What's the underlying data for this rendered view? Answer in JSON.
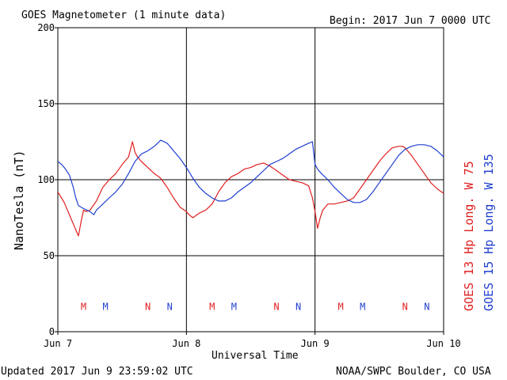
{
  "header": {
    "title": "GOES Magnetometer (1 minute data)",
    "begin": "Begin:  2017 Jun 7 0000 UTC"
  },
  "footer": {
    "updated": "Updated 2017 Jun  9 23:59:02 UTC",
    "credit": "NOAA/SWPC Boulder, CO USA"
  },
  "colors": {
    "goes13": "#e02020",
    "goes15": "#1f3fd0",
    "axis": "#000000"
  },
  "chart_data": {
    "type": "line",
    "title": "GOES Magnetometer (1 minute data)",
    "xlabel": "Universal Time",
    "ylabel": "NanoTesla (nT)",
    "ylim": [
      0,
      200
    ],
    "xlim_days": [
      0,
      3
    ],
    "x_tick_labels": [
      "Jun 7",
      "Jun 8",
      "Jun 9",
      "Jun 10"
    ],
    "y_ticks": [
      0,
      50,
      100,
      150,
      200
    ],
    "grid": true,
    "legend": "right-side vertical",
    "series": [
      {
        "name": "GOES 13 Hp  Long. W 75",
        "color": "#e02020",
        "x": [
          0.0,
          0.05,
          0.1,
          0.14,
          0.16,
          0.18,
          0.2,
          0.22,
          0.25,
          0.3,
          0.35,
          0.4,
          0.45,
          0.5,
          0.55,
          0.58,
          0.6,
          0.62,
          0.65,
          0.7,
          0.75,
          0.8,
          0.85,
          0.9,
          0.95,
          1.0,
          1.02,
          1.05,
          1.1,
          1.15,
          1.2,
          1.25,
          1.3,
          1.35,
          1.4,
          1.45,
          1.5,
          1.55,
          1.6,
          1.65,
          1.7,
          1.75,
          1.8,
          1.85,
          1.9,
          1.95,
          1.98,
          2.0,
          2.02,
          2.04,
          2.06,
          2.08,
          2.1,
          2.15,
          2.2,
          2.25,
          2.3,
          2.35,
          2.4,
          2.45,
          2.5,
          2.55,
          2.6,
          2.65,
          2.68,
          2.7,
          2.75,
          2.8,
          2.85,
          2.9,
          2.95,
          3.0
        ],
        "values": [
          92,
          85,
          75,
          67,
          63,
          72,
          80,
          79,
          80,
          86,
          95,
          100,
          104,
          110,
          115,
          125,
          118,
          115,
          112,
          108,
          104,
          101,
          95,
          88,
          82,
          79,
          77,
          75,
          78,
          80,
          84,
          92,
          98,
          102,
          104,
          107,
          108,
          110,
          111,
          109,
          106,
          103,
          100,
          99,
          98,
          96,
          88,
          79,
          68,
          75,
          80,
          82,
          84,
          84,
          85,
          86,
          88,
          94,
          100,
          106,
          112,
          117,
          121,
          122,
          122,
          121,
          116,
          110,
          104,
          98,
          94,
          91
        ]
      },
      {
        "name": "GOES 15 Hp  Long. W 135",
        "color": "#1f3fd0",
        "x": [
          0.0,
          0.03,
          0.06,
          0.09,
          0.12,
          0.14,
          0.16,
          0.18,
          0.2,
          0.25,
          0.28,
          0.3,
          0.35,
          0.4,
          0.45,
          0.5,
          0.55,
          0.6,
          0.65,
          0.7,
          0.75,
          0.8,
          0.85,
          0.9,
          0.95,
          1.0,
          1.05,
          1.1,
          1.15,
          1.2,
          1.25,
          1.3,
          1.35,
          1.4,
          1.45,
          1.5,
          1.55,
          1.6,
          1.65,
          1.7,
          1.75,
          1.8,
          1.85,
          1.9,
          1.95,
          1.98,
          2.0,
          2.02,
          2.05,
          2.1,
          2.15,
          2.2,
          2.25,
          2.3,
          2.35,
          2.4,
          2.45,
          2.5,
          2.55,
          2.6,
          2.65,
          2.7,
          2.75,
          2.8,
          2.85,
          2.9,
          2.95,
          3.0
        ],
        "values": [
          112,
          110,
          107,
          103,
          95,
          88,
          83,
          82,
          81,
          79,
          77,
          80,
          84,
          88,
          92,
          97,
          104,
          112,
          117,
          119,
          122,
          126,
          124,
          119,
          114,
          108,
          101,
          95,
          91,
          88,
          86,
          86,
          88,
          92,
          95,
          98,
          102,
          106,
          110,
          112,
          114,
          117,
          120,
          122,
          124,
          125,
          110,
          107,
          104,
          100,
          95,
          91,
          87,
          85,
          85,
          87,
          92,
          98,
          104,
          110,
          116,
          120,
          122,
          123,
          123,
          122,
          119,
          115
        ]
      }
    ],
    "annotations": [
      {
        "text": "M",
        "x": 0.2,
        "color": "#e02020"
      },
      {
        "text": "M",
        "x": 0.37,
        "color": "#1f3fd0"
      },
      {
        "text": "N",
        "x": 0.7,
        "color": "#e02020"
      },
      {
        "text": "N",
        "x": 0.87,
        "color": "#1f3fd0"
      },
      {
        "text": "M",
        "x": 1.2,
        "color": "#e02020"
      },
      {
        "text": "M",
        "x": 1.37,
        "color": "#1f3fd0"
      },
      {
        "text": "N",
        "x": 1.7,
        "color": "#e02020"
      },
      {
        "text": "N",
        "x": 1.87,
        "color": "#1f3fd0"
      },
      {
        "text": "M",
        "x": 2.2,
        "color": "#e02020"
      },
      {
        "text": "M",
        "x": 2.37,
        "color": "#1f3fd0"
      },
      {
        "text": "N",
        "x": 2.7,
        "color": "#e02020"
      },
      {
        "text": "N",
        "x": 2.87,
        "color": "#1f3fd0"
      }
    ],
    "annotation_level": 17
  }
}
